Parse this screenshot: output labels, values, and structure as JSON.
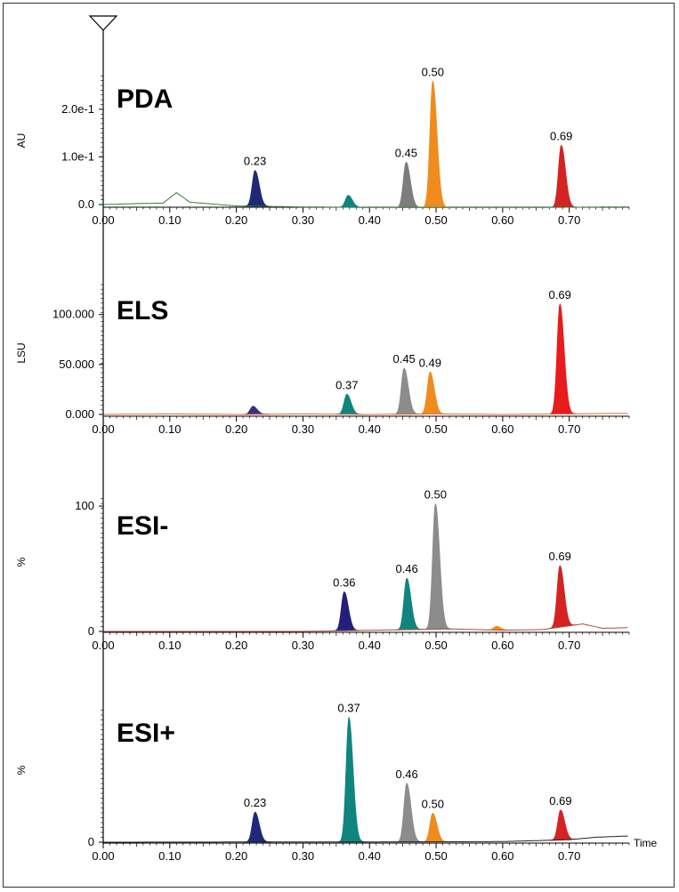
{
  "chart_data": [
    {
      "type": "area",
      "title": "PDA",
      "ylabel": "AU",
      "xlim": [
        0,
        0.79
      ],
      "ylim": [
        -0.01,
        0.28
      ],
      "xticks": [
        "0.00",
        "0.10",
        "0.20",
        "0.30",
        "0.40",
        "0.50",
        "0.60",
        "0.70"
      ],
      "yticks": [
        {
          "value": 0,
          "label": "0.0"
        },
        {
          "value": 0.1,
          "label": "1.0e-1"
        },
        {
          "value": 0.2,
          "label": "2.0e-1"
        }
      ],
      "trace_color": "#3a7a3a",
      "baseline": [
        [
          0.0,
          0.0
        ],
        [
          0.05,
          0.002
        ],
        [
          0.09,
          0.003
        ],
        [
          0.11,
          0.025
        ],
        [
          0.13,
          0.005
        ],
        [
          0.2,
          -0.003
        ],
        [
          0.3,
          -0.005
        ],
        [
          0.4,
          -0.006
        ],
        [
          0.55,
          -0.006
        ],
        [
          0.65,
          -0.006
        ],
        [
          0.79,
          -0.005
        ]
      ],
      "peaks": [
        {
          "label": "0.23",
          "rt": 0.228,
          "height": 0.075,
          "color": "#1e2a78"
        },
        {
          "label": "",
          "rt": 0.368,
          "height": 0.025,
          "color": "#10857f"
        },
        {
          "label": "0.45",
          "rt": 0.455,
          "height": 0.095,
          "color": "#7d7d7d"
        },
        {
          "label": "0.50",
          "rt": 0.495,
          "height": 0.265,
          "color": "#f08c1e"
        },
        {
          "label": "0.69",
          "rt": 0.688,
          "height": 0.13,
          "color": "#d42323"
        }
      ]
    },
    {
      "type": "area",
      "title": "ELS",
      "ylabel": "LSU",
      "xlim": [
        0,
        0.79
      ],
      "ylim": [
        -5,
        130
      ],
      "xticks": [
        "0.00",
        "0.10",
        "0.20",
        "0.30",
        "0.40",
        "0.50",
        "0.60",
        "0.70"
      ],
      "yticks": [
        {
          "value": 0,
          "label": "0.000"
        },
        {
          "value": 50,
          "label": "50.000"
        },
        {
          "value": 100,
          "label": "100.000"
        }
      ],
      "trace_color": "#e06a3a",
      "baseline": [
        [
          0.0,
          0.0
        ],
        [
          0.1,
          0.5
        ],
        [
          0.2,
          0.0
        ],
        [
          0.3,
          0.5
        ],
        [
          0.4,
          0.0
        ],
        [
          0.5,
          0.5
        ],
        [
          0.6,
          0.0
        ],
        [
          0.7,
          0.5
        ],
        [
          0.76,
          1.0
        ]
      ],
      "peaks": [
        {
          "label": "",
          "rt": 0.225,
          "height": 8,
          "color": "#3b2d80"
        },
        {
          "label": "0.37",
          "rt": 0.366,
          "height": 20,
          "color": "#10857f"
        },
        {
          "label": "0.45",
          "rt": 0.452,
          "height": 46,
          "color": "#8c8c8c"
        },
        {
          "label": "0.49",
          "rt": 0.491,
          "height": 42,
          "color": "#f08c1e"
        },
        {
          "label": "0.69",
          "rt": 0.686,
          "height": 110,
          "color": "#e81c1c"
        }
      ]
    },
    {
      "type": "area",
      "title": "ESI-",
      "ylabel": "%",
      "xlim": [
        0,
        0.79
      ],
      "ylim": [
        -3,
        110
      ],
      "xticks": [
        "0.00",
        "0.10",
        "0.20",
        "0.30",
        "0.40",
        "0.50",
        "0.60",
        "0.70"
      ],
      "yticks": [
        {
          "value": 0,
          "label": "0"
        },
        {
          "value": 100,
          "label": "100"
        }
      ],
      "trace_color": "#b04a3a",
      "baseline": [
        [
          0.0,
          0.0
        ],
        [
          0.3,
          0.0
        ],
        [
          0.52,
          2.0
        ],
        [
          0.6,
          1.0
        ],
        [
          0.66,
          1.5
        ],
        [
          0.72,
          6.0
        ],
        [
          0.75,
          2.5
        ],
        [
          0.79,
          3.0
        ]
      ],
      "peaks": [
        {
          "label": "0.36",
          "rt": 0.362,
          "height": 31,
          "color": "#22207a"
        },
        {
          "label": "0.46",
          "rt": 0.456,
          "height": 41,
          "color": "#10857f"
        },
        {
          "label": "0.50",
          "rt": 0.499,
          "height": 100,
          "color": "#8c8c8c"
        },
        {
          "label": "",
          "rt": 0.591,
          "height": 3,
          "color": "#f08c1e"
        },
        {
          "label": "0.69",
          "rt": 0.686,
          "height": 49,
          "color": "#d42323"
        }
      ]
    },
    {
      "type": "area",
      "title": "ESI+",
      "ylabel": "%",
      "xlabel": "Time",
      "xlim": [
        0,
        0.79
      ],
      "ylim": [
        -3,
        110
      ],
      "xticks": [
        "0.00",
        "0.10",
        "0.20",
        "0.30",
        "0.40",
        "0.50",
        "0.60",
        "0.70"
      ],
      "yticks": [
        {
          "value": 0,
          "label": "0"
        }
      ],
      "trace_color": "#222222",
      "baseline": [
        [
          0.0,
          0.0
        ],
        [
          0.5,
          0.3
        ],
        [
          0.6,
          0.5
        ],
        [
          0.7,
          2.0
        ],
        [
          0.74,
          4.0
        ],
        [
          0.79,
          5.0
        ]
      ],
      "peaks": [
        {
          "label": "0.23",
          "rt": 0.228,
          "height": 24,
          "color": "#1e2a78"
        },
        {
          "label": "0.37",
          "rt": 0.369,
          "height": 100,
          "color": "#10857f"
        },
        {
          "label": "0.46",
          "rt": 0.456,
          "height": 47,
          "color": "#8c8c8c"
        },
        {
          "label": "0.50",
          "rt": 0.495,
          "height": 23,
          "color": "#f08c1e"
        },
        {
          "label": "0.69",
          "rt": 0.687,
          "height": 24,
          "color": "#d42323"
        }
      ]
    }
  ]
}
